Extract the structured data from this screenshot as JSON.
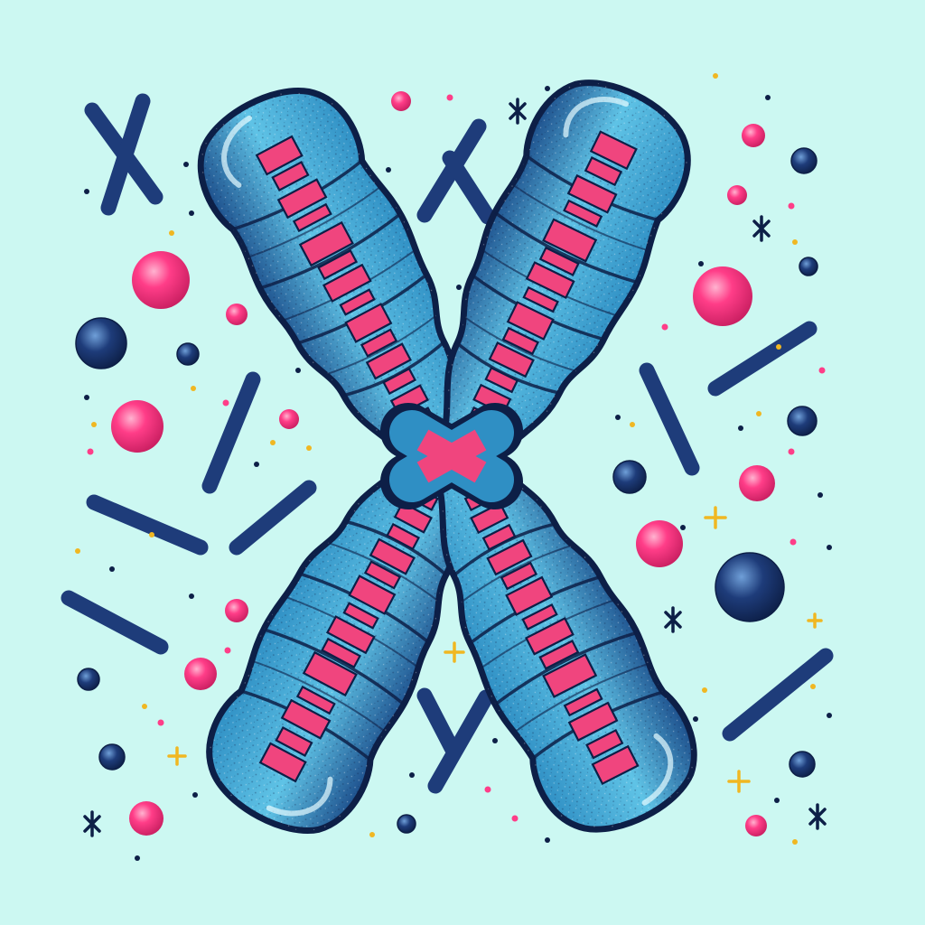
{
  "illustration": {
    "subject": "chromosome",
    "style": "hand-drawn stippled illustration",
    "colors": {
      "background": "#ccf8f2",
      "chromosome_light": "#5fc3e6",
      "chromosome_mid": "#2f8fc4",
      "chromosome_dark": "#1d4f8c",
      "outline": "#0d1f47",
      "band": "#f0457e",
      "band_light": "#ff7aa6",
      "particle_navy": "#1e3c7a",
      "particle_pink": "#ff3d88",
      "speck_yellow": "#f0b722"
    }
  }
}
